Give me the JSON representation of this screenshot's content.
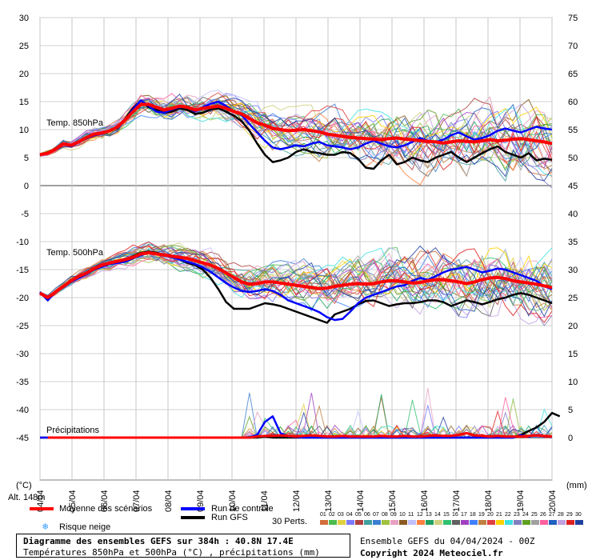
{
  "chart_data": {
    "type": "line",
    "title": "Diagramme des ensembles GEFS sur 384h : 40.8N 17.4E",
    "subtitle": "Températures 850hPa et 500hPa (°C) , précipitations (mm)",
    "left_unit": "(°C)",
    "right_unit": "(mm)",
    "left_ticks": [
      30,
      25,
      20,
      15,
      10,
      5,
      0,
      -5,
      -10,
      -15,
      -20,
      -25,
      -30,
      -35,
      -40,
      -45
    ],
    "right_ticks": [
      75,
      70,
      65,
      60,
      55,
      50,
      45,
      40,
      35,
      30,
      25,
      20,
      15,
      10,
      5,
      0
    ],
    "dates": [
      "04/04",
      "05/04",
      "06/04",
      "07/04",
      "08/04",
      "09/04",
      "10/04",
      "11/04",
      "12/04",
      "13/04",
      "14/04",
      "15/04",
      "16/04",
      "17/04",
      "18/04",
      "19/04",
      "20/04"
    ],
    "panel_labels": {
      "t850": "Temp. 850hPa",
      "t500": "Temp. 500hPa",
      "precip": "Précipitations"
    },
    "altitude": "Alt. 148m",
    "x_step_hours": 6,
    "t850": {
      "mean": [
        5.5,
        5.8,
        6.5,
        7.5,
        7.2,
        7.8,
        8.6,
        9.2,
        9.4,
        9.8,
        10.5,
        11.8,
        13.2,
        14.5,
        14.5,
        14.0,
        13.5,
        13.8,
        14.2,
        14.0,
        13.5,
        13.8,
        14.0,
        14.2,
        13.8,
        13.2,
        12.8,
        12.0,
        11.2,
        10.8,
        10.2,
        10.0,
        9.8,
        9.9,
        10.0,
        9.8,
        9.6,
        9.2,
        9.0,
        8.8,
        8.6,
        8.5,
        8.4,
        8.3,
        8.2,
        8.4,
        8.5,
        8.3,
        8.2,
        8.0,
        7.9,
        7.8,
        7.6,
        7.8,
        8.0,
        7.9,
        7.8,
        8.0,
        8.2,
        8.0,
        8.1,
        8.3,
        8.4,
        8.2,
        8.0,
        7.8,
        7.5
      ],
      "control": [
        5.5,
        5.8,
        6.5,
        7.5,
        7.0,
        7.8,
        8.4,
        9.0,
        9.3,
        9.8,
        10.4,
        11.8,
        13.6,
        15.2,
        14.2,
        13.2,
        13.0,
        13.6,
        14.0,
        14.0,
        13.2,
        14.0,
        14.6,
        15.0,
        14.2,
        13.2,
        12.6,
        11.0,
        9.5,
        8.0,
        6.8,
        6.5,
        6.8,
        7.2,
        7.0,
        7.5,
        7.8,
        7.2,
        7.0,
        6.8,
        6.5,
        6.8,
        7.5,
        8.0,
        7.5,
        7.0,
        6.8,
        7.2,
        7.8,
        8.5,
        8.0,
        7.8,
        8.2,
        9.0,
        9.5,
        8.8,
        8.2,
        8.5,
        9.0,
        9.8,
        10.2,
        9.8,
        9.5,
        10.0,
        10.5,
        10.2,
        10.0
      ],
      "gfs": [
        5.5,
        5.8,
        6.5,
        7.5,
        7.0,
        7.8,
        8.5,
        9.2,
        9.5,
        9.8,
        10.3,
        12.0,
        13.8,
        15.2,
        14.0,
        13.5,
        13.0,
        13.2,
        13.8,
        13.5,
        12.8,
        13.0,
        13.6,
        13.8,
        13.2,
        12.5,
        11.5,
        9.8,
        7.5,
        5.5,
        4.2,
        4.5,
        5.0,
        6.0,
        6.5,
        6.0,
        5.8,
        5.5,
        5.5,
        6.0,
        5.8,
        4.8,
        3.2,
        3.0,
        4.5,
        5.5,
        3.8,
        4.2,
        5.0,
        4.5,
        4.2,
        5.0,
        5.5,
        6.0,
        5.0,
        4.2,
        5.0,
        5.8,
        6.5,
        7.0,
        6.0,
        5.5,
        5.0,
        5.8,
        4.5,
        4.8,
        4.6
      ]
    },
    "t500": {
      "mean": [
        -19.2,
        -20.0,
        -19.0,
        -18.0,
        -17.0,
        -16.2,
        -15.6,
        -14.8,
        -14.2,
        -13.8,
        -13.5,
        -13.2,
        -12.8,
        -12.2,
        -12.0,
        -12.2,
        -12.4,
        -12.6,
        -12.8,
        -13.0,
        -13.4,
        -13.8,
        -14.2,
        -14.8,
        -15.6,
        -16.4,
        -17.2,
        -17.6,
        -17.5,
        -17.2,
        -17.2,
        -17.4,
        -17.6,
        -17.8,
        -18.0,
        -18.2,
        -18.4,
        -18.3,
        -18.0,
        -17.8,
        -17.6,
        -17.5,
        -17.6,
        -17.5,
        -17.2,
        -17.0,
        -17.0,
        -17.2,
        -17.4,
        -17.3,
        -17.0,
        -16.8,
        -16.8,
        -17.0,
        -17.2,
        -17.5,
        -17.2,
        -16.8,
        -16.5,
        -16.4,
        -16.6,
        -17.0,
        -17.2,
        -17.4,
        -17.6,
        -17.9,
        -18.2
      ],
      "control": [
        -19.0,
        -20.5,
        -19.0,
        -18.0,
        -17.2,
        -16.5,
        -15.8,
        -15.0,
        -14.5,
        -14.0,
        -13.8,
        -13.6,
        -13.0,
        -12.4,
        -12.0,
        -12.2,
        -12.5,
        -12.8,
        -13.2,
        -13.6,
        -14.0,
        -14.6,
        -15.4,
        -16.4,
        -17.4,
        -18.2,
        -18.8,
        -19.0,
        -18.8,
        -18.5,
        -18.8,
        -19.5,
        -20.5,
        -21.0,
        -21.5,
        -22.0,
        -22.6,
        -23.5,
        -24.0,
        -23.8,
        -22.5,
        -21.0,
        -20.0,
        -19.5,
        -19.0,
        -18.5,
        -18.0,
        -17.8,
        -17.0,
        -16.5,
        -16.8,
        -16.2,
        -15.5,
        -15.0,
        -14.8,
        -14.5,
        -15.0,
        -15.5,
        -15.2,
        -14.8,
        -15.0,
        -15.5,
        -16.0,
        -16.5,
        -17.0,
        -18.0,
        -18.5
      ],
      "gfs": [
        -19.2,
        -20.2,
        -19.0,
        -18.0,
        -17.2,
        -16.2,
        -15.6,
        -15.0,
        -14.4,
        -14.0,
        -13.6,
        -13.2,
        -12.6,
        -12.0,
        -11.8,
        -12.0,
        -12.3,
        -12.7,
        -13.2,
        -13.8,
        -14.2,
        -15.0,
        -16.5,
        -18.5,
        -20.8,
        -22.0,
        -22.0,
        -22.0,
        -21.5,
        -21.0,
        -21.2,
        -21.5,
        -22.0,
        -22.5,
        -23.0,
        -23.5,
        -24.0,
        -24.5,
        -23.0,
        -22.5,
        -22.0,
        -21.2,
        -20.6,
        -20.5,
        -21.0,
        -21.5,
        -21.2,
        -21.0,
        -21.0,
        -20.8,
        -20.5,
        -20.5,
        -20.8,
        -21.5,
        -21.0,
        -20.5,
        -20.8,
        -21.2,
        -20.8,
        -20.3,
        -20.0,
        -19.5,
        -19.2,
        -19.5,
        -20.0,
        -20.5,
        -21.0
      ]
    },
    "precip_mm": {
      "mean": [
        0,
        0,
        0,
        0,
        0,
        0,
        0,
        0,
        0,
        0,
        0,
        0,
        0,
        0,
        0,
        0,
        0,
        0,
        0,
        0,
        0,
        0,
        0,
        0,
        0,
        0,
        0,
        0,
        0.2,
        0.3,
        0.3,
        0.4,
        0.3,
        0.2,
        0.3,
        0.4,
        0.3,
        0.2,
        0.2,
        0.3,
        0.2,
        0.2,
        0.2,
        0.2,
        0.3,
        0.2,
        0.2,
        0.3,
        0.2,
        0.2,
        0.3,
        0.4,
        0.3,
        0.3,
        0.5,
        0.8,
        0.4,
        0.3,
        0.2,
        0.3,
        0.2,
        0.2,
        0.2,
        0.3,
        0.4,
        0.3,
        0.2
      ],
      "control": [
        0,
        0,
        0,
        0,
        0,
        0,
        0,
        0,
        0,
        0,
        0,
        0,
        0,
        0,
        0,
        0,
        0,
        0,
        0,
        0,
        0,
        0,
        0,
        0,
        0,
        0,
        0,
        0,
        0.5,
        2.8,
        3.8,
        0.8,
        0.2,
        0.1,
        0,
        0,
        0,
        0,
        0,
        0,
        0,
        0,
        0,
        0,
        0,
        0,
        0,
        0,
        0,
        0,
        0,
        0,
        0,
        0,
        0,
        0,
        0,
        0,
        0,
        0,
        0,
        0,
        0.4,
        0.2,
        0.5,
        0.3,
        0.1
      ],
      "gfs": [
        0,
        0,
        0,
        0,
        0,
        0,
        0,
        0,
        0,
        0,
        0,
        0,
        0,
        0,
        0,
        0,
        0,
        0,
        0,
        0,
        0,
        0,
        0,
        0,
        0,
        0,
        0,
        0,
        0,
        0.2,
        0,
        0,
        0,
        0,
        0,
        0,
        0,
        0,
        0,
        0,
        0,
        0,
        0,
        0,
        0,
        0,
        0,
        0,
        0,
        0,
        0,
        0,
        0,
        0,
        0,
        0,
        0,
        0,
        0,
        0,
        0,
        0,
        0.5,
        1.2,
        1.8,
        2.8,
        4.4,
        3.8
      ]
    },
    "legend": {
      "mean": "Moyenne des scénarios",
      "control": "Run de contrôle",
      "gfs": "Run GFS",
      "snow": "Risque neige",
      "perts": "30 Perts.",
      "pert_numbers": [
        "01",
        "02",
        "03",
        "04",
        "05",
        "06",
        "07",
        "08",
        "09",
        "10",
        "11",
        "12",
        "13",
        "14",
        "15",
        "16",
        "17",
        "18",
        "19",
        "20",
        "21",
        "22",
        "23",
        "24",
        "25",
        "26",
        "27",
        "28",
        "29",
        "30"
      ],
      "pert_colors": [
        "#d26f3a",
        "#4dbb4d",
        "#e0d040",
        "#7a7aff",
        "#b04040",
        "#40a0a0",
        "#3a7fd2",
        "#a0c040",
        "#e8a0c0",
        "#8a5a20",
        "#c0c0ff",
        "#ff8040",
        "#20a060",
        "#d0d080",
        "#30c070",
        "#606060",
        "#a040c0",
        "#4080ff",
        "#c08040",
        "#e04040",
        "#ffd000",
        "#40e0e0",
        "#8080c0",
        "#60a020",
        "#a0a0a0",
        "#ff60a0",
        "#2060c0",
        "#c0a0e0",
        "#e02020",
        "#2040a0"
      ],
      "colors": {
        "mean": "#ff0000",
        "control": "#0000ff",
        "gfs": "#000000",
        "grid": "#c0c0c0"
      }
    },
    "run_info": "Ensemble GEFS du 04/04/2024 - 00Z",
    "copyright": "Copyright 2024 Meteociel.fr"
  }
}
